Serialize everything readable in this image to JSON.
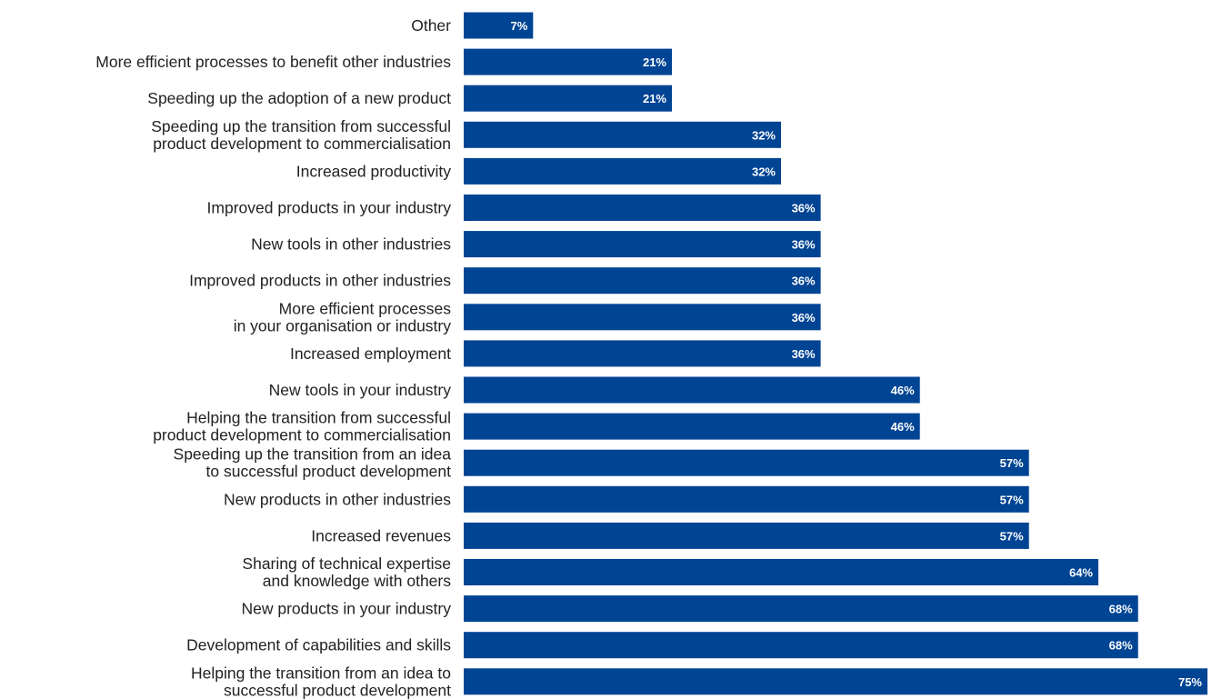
{
  "chart_data": {
    "type": "bar",
    "orientation": "horizontal",
    "bar_color": "#004494",
    "value_label_color": "#ffffff",
    "xlim": [
      0,
      75
    ],
    "grid": false,
    "legend": "none",
    "categories": [
      "Other",
      "More efficient processes to benefit other industries",
      "Speeding up the adoption of a new product",
      "Speeding up the transition from successful\nproduct development to commercialisation",
      "Increased productivity",
      "Improved products in your industry",
      "New tools in other industries",
      "Improved products in other industries",
      "More efficient processes\nin your organisation or industry",
      "Increased employment",
      "New tools in your industry",
      "Helping the transition from successful\nproduct development to commercialisation",
      "Speeding up the transition from an idea\nto successful product development",
      "New products in other industries",
      "Increased revenues",
      "Sharing of technical expertise\nand knowledge with others",
      "New products in your industry",
      "Development of capabilities and skills",
      "Helping the transition from an idea to\nsuccessful product development"
    ],
    "values": [
      7,
      21,
      21,
      32,
      32,
      36,
      36,
      36,
      36,
      36,
      46,
      46,
      57,
      57,
      57,
      64,
      68,
      68,
      75
    ],
    "value_labels": [
      "7%",
      "21%",
      "21%",
      "32%",
      "32%",
      "36%",
      "36%",
      "36%",
      "36%",
      "36%",
      "46%",
      "46%",
      "57%",
      "57%",
      "57%",
      "64%",
      "68%",
      "68%",
      "75%"
    ]
  }
}
